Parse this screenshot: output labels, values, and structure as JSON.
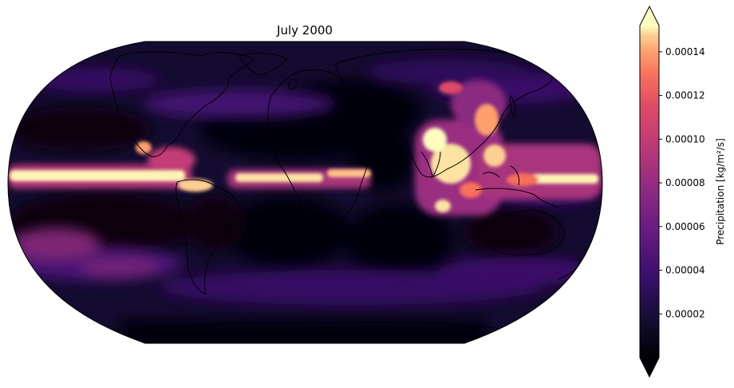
{
  "figure": {
    "title": "July 2000",
    "projection": "Robinson",
    "colormap": "magma",
    "colors": {
      "magma": [
        "#000004",
        "#1c1044",
        "#4f127b",
        "#812581",
        "#b5367a",
        "#e55064",
        "#fb8761",
        "#fec287",
        "#fcfdbf"
      ],
      "coastline": "#000000"
    }
  },
  "colorbar": {
    "label": "Precipitation [kg/m²/s]",
    "orientation": "vertical",
    "extend": "both",
    "range": [
      0.0,
      0.000152
    ],
    "ticks": [
      {
        "value": 2e-05,
        "label": "0.00002"
      },
      {
        "value": 4e-05,
        "label": "0.00004"
      },
      {
        "value": 6e-05,
        "label": "0.00006"
      },
      {
        "value": 8e-05,
        "label": "0.00008"
      },
      {
        "value": 0.0001,
        "label": "0.00010"
      },
      {
        "value": 0.00012,
        "label": "0.00012"
      },
      {
        "value": 0.00014,
        "label": "0.00014"
      }
    ]
  }
}
